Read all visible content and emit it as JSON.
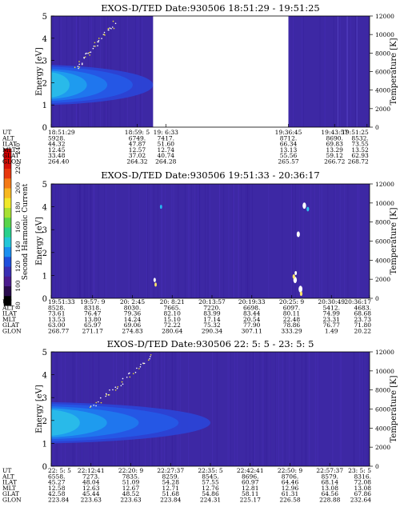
{
  "figure": {
    "colorbar": {
      "label": "Second Harmonic Current",
      "ticks": [
        "80",
        "100",
        "120",
        "140",
        "160",
        "180",
        "200",
        "220",
        "240"
      ]
    },
    "row_labels": [
      "UT",
      "ALT",
      "ILAT",
      "MLT",
      "GLAT",
      "GLON"
    ],
    "panels": [
      {
        "title": "EXOS-D/TED   Date:930506  18:51:29 - 19:51:25",
        "ylabel": "Energy [eV]",
        "y2label": "Temperature [K]",
        "yticks": [
          "0",
          "1",
          "2",
          "3",
          "4",
          "5"
        ],
        "y2ticks": [
          "0",
          "2000",
          "4000",
          "6000",
          "8000",
          "10000",
          "12000"
        ],
        "columns": [
          {
            "UT": "18:51:29",
            "ALT": "5928.",
            "ILAT": "44.32",
            "MLT": "12.45",
            "GLAT": "33.48",
            "GLON": "264.40"
          },
          {
            "UT": "18:59: 5",
            "ALT": "6749.",
            "ILAT": "47.87",
            "MLT": "12.57",
            "GLAT": "37.02",
            "GLON": "264.32"
          },
          {
            "UT": "19: 6:33",
            "ALT": "7417.",
            "ILAT": "51.60",
            "MLT": "12.74",
            "GLAT": "40.74",
            "GLON": "264.28"
          },
          {
            "UT": "19:36:45",
            "ALT": "8712.",
            "ILAT": "66.34",
            "MLT": "13.13",
            "GLAT": "55.56",
            "GLON": "265.57"
          },
          {
            "UT": "19:43:57",
            "ALT": "8690.",
            "ILAT": "69.83",
            "MLT": "13.29",
            "GLAT": "59.12",
            "GLON": "266.72"
          },
          {
            "UT": "19:51:25",
            "ALT": "8532.",
            "ILAT": "73.55",
            "MLT": "13.52",
            "GLAT": "62.93",
            "GLON": "268.72"
          }
        ]
      },
      {
        "title": "EXOS-D/TED   Date:930506  19:51:33 - 20:36:17",
        "ylabel": "Energy [eV]",
        "y2label": "Temperature [K]",
        "yticks": [
          "0",
          "1",
          "2",
          "3",
          "4",
          "5"
        ],
        "y2ticks": [
          "0",
          "2000",
          "4000",
          "6000",
          "8000",
          "10000",
          "12000"
        ],
        "columns": [
          {
            "UT": "19:51:33",
            "ALT": "8528.",
            "ILAT": "73.61",
            "MLT": "13.53",
            "GLAT": "63.00",
            "GLON": "268.77"
          },
          {
            "UT": "19:57: 9",
            "ALT": "8318.",
            "ILAT": "76.47",
            "MLT": "13.80",
            "GLAT": "65.97",
            "GLON": "271.17"
          },
          {
            "UT": "20: 2:45",
            "ALT": "8030.",
            "ILAT": "79.36",
            "MLT": "14.24",
            "GLAT": "69.06",
            "GLON": "274.83"
          },
          {
            "UT": "20: 8:21",
            "ALT": "7665.",
            "ILAT": "82.10",
            "MLT": "15.10",
            "GLAT": "72.22",
            "GLON": "280.64"
          },
          {
            "UT": "20:13:57",
            "ALT": "7220.",
            "ILAT": "83.99",
            "MLT": "17.14",
            "GLAT": "75.32",
            "GLON": "290.34"
          },
          {
            "UT": "20:19:33",
            "ALT": "6698.",
            "ILAT": "83.44",
            "MLT": "20.54",
            "GLAT": "77.90",
            "GLON": "307.11"
          },
          {
            "UT": "20:25: 9",
            "ALT": "6097.",
            "ILAT": "80.11",
            "MLT": "22.48",
            "GLAT": "78.86",
            "GLON": "333.29"
          },
          {
            "UT": "20:30:49",
            "ALT": "5412.",
            "ILAT": "74.99",
            "MLT": "23.31",
            "GLAT": "76.77",
            "GLON": "1.49"
          },
          {
            "UT": "20:36:17",
            "ALT": "4683.",
            "ILAT": "68.68",
            "MLT": "23.73",
            "GLAT": "71.80",
            "GLON": "20.22"
          }
        ]
      },
      {
        "title": "EXOS-D/TED   Date:930506  22: 5: 5 - 23: 5: 5",
        "ylabel": "Energy [eV]",
        "y2label": "Temperature [K]",
        "yticks": [
          "0",
          "1",
          "2",
          "3",
          "4",
          "5"
        ],
        "y2ticks": [
          "0",
          "2000",
          "4000",
          "6000",
          "8000",
          "10000",
          "12000"
        ],
        "columns": [
          {
            "UT": "22: 5: 5",
            "ALT": "6558.",
            "ILAT": "45.27",
            "MLT": "12.58",
            "GLAT": "42.58",
            "GLON": "223.84"
          },
          {
            "UT": "22:12:41",
            "ALT": "7273.",
            "ILAT": "48.04",
            "MLT": "12.63",
            "GLAT": "45.44",
            "GLON": "223.63"
          },
          {
            "UT": "22:20: 9",
            "ALT": "7835.",
            "ILAT": "51.09",
            "MLT": "12.67",
            "GLAT": "48.52",
            "GLON": "223.63"
          },
          {
            "UT": "22:27:37",
            "ALT": "8259.",
            "ILAT": "54.28",
            "MLT": "12.71",
            "GLAT": "51.68",
            "GLON": "223.84"
          },
          {
            "UT": "22:35: 5",
            "ALT": "8545.",
            "ILAT": "57.55",
            "MLT": "12.76",
            "GLAT": "54.86",
            "GLON": "224.31"
          },
          {
            "UT": "22:42:41",
            "ALT": "8696.",
            "ILAT": "60.97",
            "MLT": "12.81",
            "GLAT": "58.11",
            "GLON": "225.17"
          },
          {
            "UT": "22:50: 9",
            "ALT": "8706.",
            "ILAT": "64.46",
            "MLT": "12.96",
            "GLAT": "61.31",
            "GLON": "226.58"
          },
          {
            "UT": "22:57:37",
            "ALT": "8579.",
            "ILAT": "68.14",
            "MLT": "13.08",
            "GLAT": "64.56",
            "GLON": "228.88"
          },
          {
            "UT": "23: 5: 5",
            "ALT": "8316.",
            "ILAT": "72.08",
            "MLT": "13.08",
            "GLAT": "67.86",
            "GLON": "232.64"
          }
        ]
      }
    ]
  },
  "chart_data": [
    {
      "type": "heatmap",
      "title": "EXOS-D/TED   Date:930506  18:51:29 - 19:51:25",
      "xlabel": "UT",
      "ylabel": "Energy [eV]",
      "y2label": "Temperature [K]",
      "ylim": [
        0,
        5
      ],
      "y2lim": [
        0,
        12000
      ],
      "colorbar_label": "Second Harmonic Current",
      "colorbar_range": [
        80,
        240
      ],
      "data_gaps": [
        [
          "19: 6:33",
          "19:36:45"
        ]
      ],
      "features": [
        {
          "name": "enhanced band",
          "ut_range": [
            "18:51:29",
            "19: 6:33"
          ],
          "energy_range_eV": [
            1.0,
            2.8
          ]
        },
        {
          "name": "temperature trace",
          "ut_range": [
            "18:51:29",
            "19: 6:33"
          ],
          "temperature_range_K": [
            6000,
            12000
          ]
        }
      ]
    },
    {
      "type": "heatmap",
      "title": "EXOS-D/TED   Date:930506  19:51:33 - 20:36:17",
      "xlabel": "UT",
      "ylabel": "Energy [eV]",
      "y2label": "Temperature [K]",
      "ylim": [
        0,
        5
      ],
      "y2lim": [
        0,
        12000
      ],
      "colorbar_label": "Second Harmonic Current",
      "colorbar_range": [
        80,
        240
      ],
      "features": [
        {
          "name": "spot",
          "ut": "19:59:30",
          "energy_eV": 4.0
        },
        {
          "name": "spot",
          "ut": "20: 0:00",
          "energy_eV": 0.8
        },
        {
          "name": "spot",
          "ut": "20:26:00",
          "energy_eV": 4.1
        },
        {
          "name": "spot",
          "ut": "20:26:30",
          "energy_eV": 2.8
        },
        {
          "name": "spot",
          "ut": "20:26:30",
          "energy_eV": 1.0
        },
        {
          "name": "spot",
          "ut": "20:25:30",
          "energy_eV": 0.5
        }
      ]
    },
    {
      "type": "heatmap",
      "title": "EXOS-D/TED   Date:930506  22: 5: 5 - 23: 5: 5",
      "xlabel": "UT",
      "ylabel": "Energy [eV]",
      "y2label": "Temperature [K]",
      "ylim": [
        0,
        5
      ],
      "y2lim": [
        0,
        12000
      ],
      "colorbar_label": "Second Harmonic Current",
      "colorbar_range": [
        80,
        240
      ],
      "features": [
        {
          "name": "enhanced band",
          "ut_range": [
            "22: 5: 5",
            "22:35: 5"
          ],
          "energy_range_eV": [
            1.0,
            2.8
          ]
        },
        {
          "name": "temperature trace",
          "ut_range": [
            "22:12:41",
            "22:27:37"
          ],
          "temperature_range_K": [
            4000,
            10000
          ]
        }
      ]
    }
  ]
}
